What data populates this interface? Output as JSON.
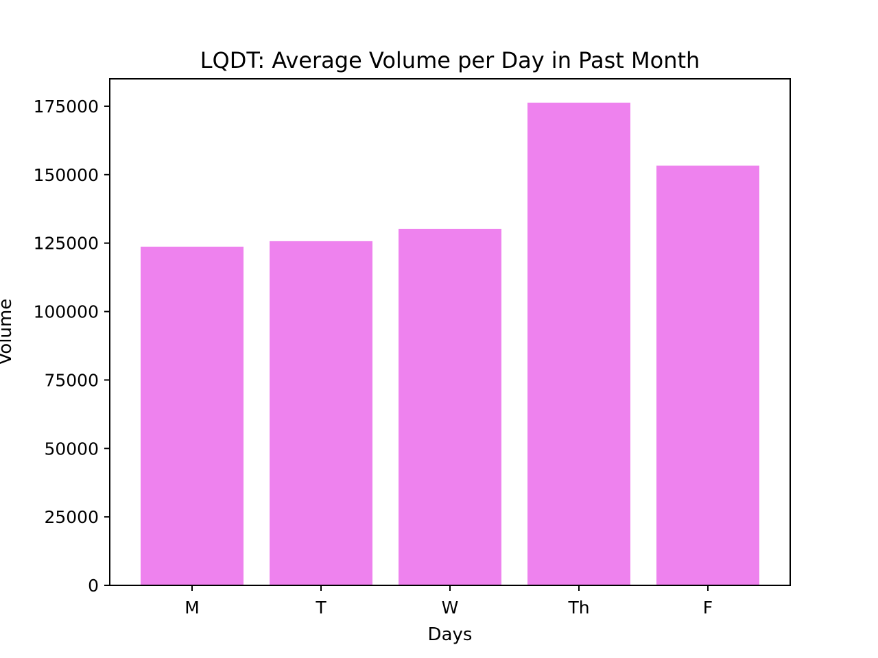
{
  "chart_data": {
    "type": "bar",
    "title": "LQDT: Average Volume per Day in Past Month",
    "xlabel": "Days",
    "ylabel": "Volume",
    "categories": [
      "M",
      "T",
      "W",
      "Th",
      "F"
    ],
    "values": [
      123700,
      125700,
      130200,
      176300,
      153300
    ],
    "ylim": [
      0,
      185000
    ],
    "yticks": [
      0,
      25000,
      50000,
      75000,
      100000,
      125000,
      150000,
      175000
    ],
    "ytick_labels": [
      "0",
      "25000",
      "50000",
      "75000",
      "100000",
      "125000",
      "150000",
      "175000"
    ],
    "bar_color": "#ee82ee",
    "grid": false,
    "legend": "none"
  }
}
